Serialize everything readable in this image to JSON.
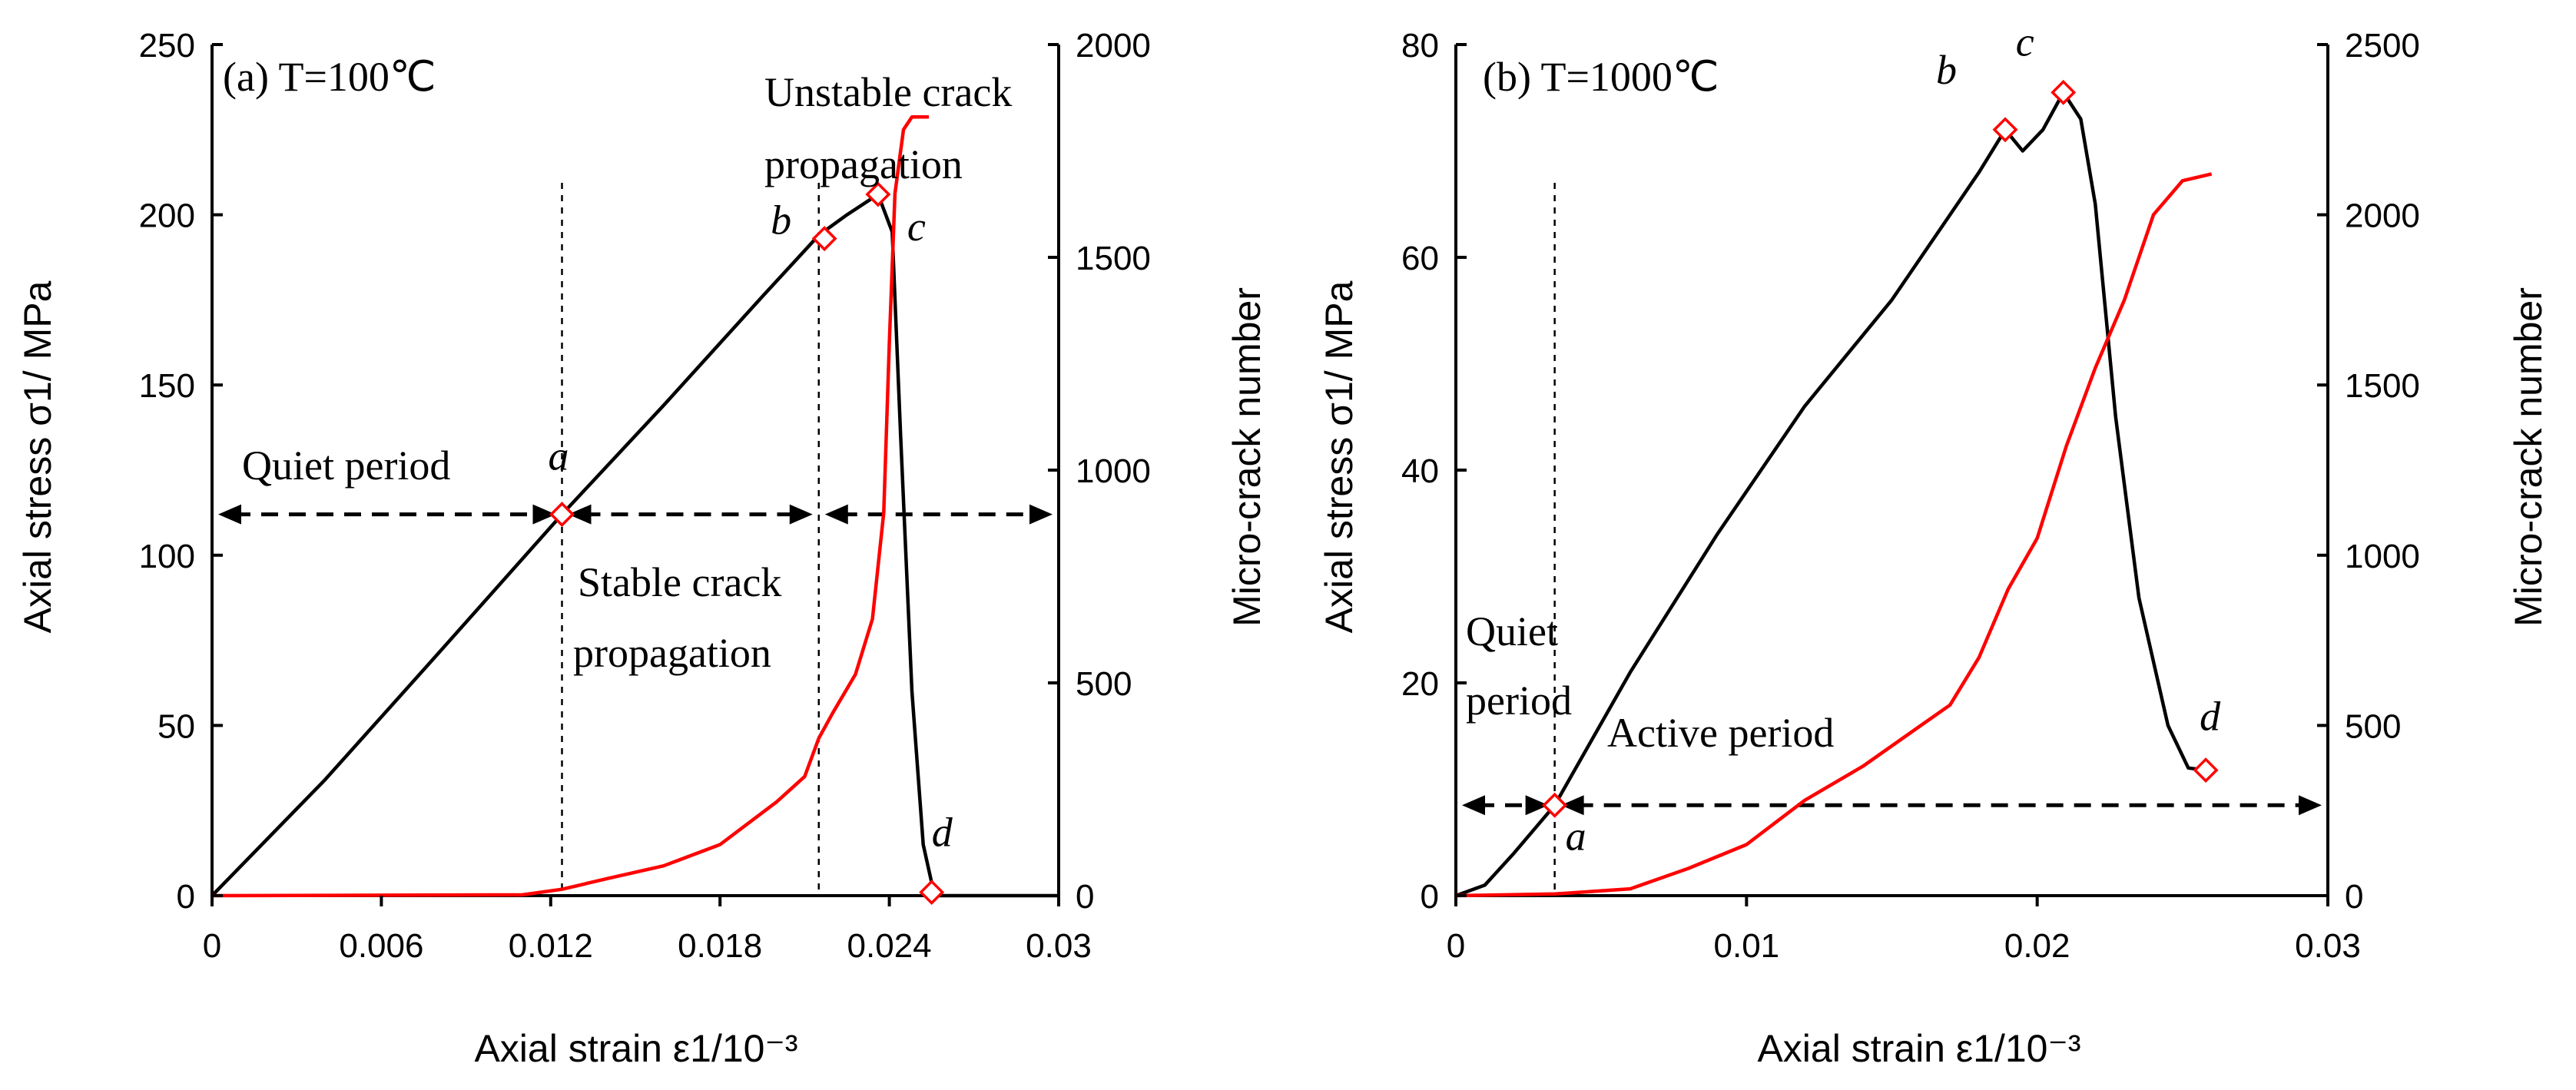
{
  "chart_data": [
    {
      "type": "line",
      "panel_label": "(a) T=100℃",
      "xlabel": "Axial strain ε1/10⁻³",
      "ylabel_left": "Axial stress σ1/ MPa",
      "ylabel_right": "Micro-crack number",
      "xlim": [
        0,
        0.03
      ],
      "ylim_left": [
        0,
        250
      ],
      "ylim_right": [
        0,
        2000
      ],
      "xticks": [
        "0",
        "0.006",
        "0.012",
        "0.018",
        "0.024",
        "0.03"
      ],
      "xtick_values": [
        0,
        0.006,
        0.012,
        0.018,
        0.024,
        0.03
      ],
      "yticks_left": [
        0,
        50,
        100,
        150,
        200,
        250
      ],
      "yticks_right": [
        0,
        500,
        1000,
        1500,
        2000
      ],
      "series": [
        {
          "name": "Axial stress",
          "axis": "left",
          "color": "#000000",
          "x": [
            0,
            0.004,
            0.008,
            0.0124,
            0.016,
            0.0195,
            0.0215,
            0.0225,
            0.0236,
            0.0241,
            0.0244,
            0.0248,
            0.0252,
            0.0256,
            0.03
          ],
          "y": [
            0,
            34,
            71,
            112,
            144,
            176,
            194,
            200,
            206,
            195,
            135,
            60,
            15,
            0,
            0
          ]
        },
        {
          "name": "Micro-crack number",
          "axis": "right",
          "color": "#ff0000",
          "x": [
            0,
            0.011,
            0.0124,
            0.014,
            0.016,
            0.018,
            0.02,
            0.021,
            0.0215,
            0.022,
            0.0228,
            0.0234,
            0.0238,
            0.024,
            0.0242,
            0.0245,
            0.0248,
            0.0254
          ],
          "y": [
            0,
            2,
            15,
            40,
            70,
            120,
            220,
            280,
            370,
            430,
            520,
            650,
            900,
            1300,
            1650,
            1800,
            1830,
            1830
          ]
        }
      ],
      "markers": [
        {
          "label": "a",
          "x": 0.0124,
          "y": 112
        },
        {
          "label": "b",
          "x": 0.0217,
          "y": 193
        },
        {
          "label": "c",
          "x": 0.0236,
          "y": 206
        },
        {
          "label": "d",
          "x": 0.0255,
          "y": 1
        }
      ],
      "vertical_lines": [
        0.0124,
        0.0215
      ],
      "annotations": {
        "quiet": "Quiet period",
        "stable_1": "Stable  crack",
        "stable_2": "propagation",
        "unstable_1": "Unstable crack",
        "unstable_2": "propagation"
      },
      "phase_arrow_y": 112
    },
    {
      "type": "line",
      "panel_label": "(b) T=1000℃",
      "xlabel": "Axial strain ε1/10⁻³",
      "ylabel_left": "Axial stress σ1/ MPa",
      "ylabel_right": "Micro-crack number",
      "xlim": [
        0,
        0.03
      ],
      "ylim_left": [
        0,
        80
      ],
      "ylim_right": [
        0,
        2500
      ],
      "xticks": [
        "0",
        "0.01",
        "0.02",
        "0.03"
      ],
      "xtick_values": [
        0,
        0.01,
        0.02,
        0.03
      ],
      "yticks_left": [
        0,
        20,
        40,
        60,
        80
      ],
      "yticks_right": [
        0,
        500,
        1000,
        1500,
        2000,
        2500
      ],
      "series": [
        {
          "name": "Axial stress",
          "axis": "left",
          "color": "#000000",
          "x": [
            0,
            0.001,
            0.002,
            0.0034,
            0.006,
            0.009,
            0.012,
            0.015,
            0.017,
            0.018,
            0.0189,
            0.0195,
            0.0202,
            0.0209,
            0.0215,
            0.022,
            0.0227,
            0.0235,
            0.0245,
            0.0252,
            0.0258
          ],
          "y": [
            0,
            1,
            4,
            8.5,
            21,
            34,
            46,
            56,
            64,
            68,
            72,
            70,
            72,
            75.5,
            73,
            65,
            45,
            28,
            16,
            12,
            11.8
          ]
        },
        {
          "name": "Micro-crack number",
          "axis": "right",
          "color": "#ff0000",
          "x": [
            0,
            0.0034,
            0.006,
            0.008,
            0.01,
            0.012,
            0.014,
            0.016,
            0.017,
            0.018,
            0.019,
            0.02,
            0.021,
            0.022,
            0.023,
            0.024,
            0.025,
            0.026
          ],
          "y": [
            0,
            5,
            20,
            80,
            150,
            280,
            380,
            500,
            560,
            700,
            900,
            1050,
            1320,
            1550,
            1750,
            2000,
            2100,
            2120
          ]
        }
      ],
      "markers": [
        {
          "label": "a",
          "x": 0.0034,
          "y": 8.5
        },
        {
          "label": "b",
          "x": 0.0189,
          "y": 72
        },
        {
          "label": "c",
          "x": 0.0209,
          "y": 75.5
        },
        {
          "label": "d",
          "x": 0.0258,
          "y": 11.8
        }
      ],
      "vertical_lines": [
        0.0034
      ],
      "annotations": {
        "quiet_1": "Quiet",
        "quiet_2": "period",
        "active": "Active period"
      },
      "phase_arrow_y": 8.5
    }
  ]
}
